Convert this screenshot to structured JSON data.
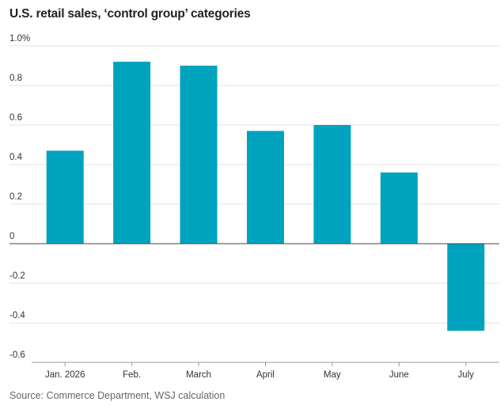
{
  "chart_data": {
    "type": "bar",
    "title": "U.S. retail sales, ‘control group’ categories",
    "source": "Source: Commerce Department, WSJ calculation",
    "categories": [
      "Jan. 2026",
      "Feb.",
      "March",
      "April",
      "May",
      "June",
      "July"
    ],
    "values": [
      0.47,
      0.92,
      0.9,
      0.57,
      0.6,
      0.36,
      -0.44
    ],
    "ylim": [
      -0.6,
      1.0
    ],
    "yticks": [
      1.0,
      0.8,
      0.6,
      0.4,
      0.2,
      0,
      -0.2,
      -0.4,
      -0.6
    ],
    "ytick_labels": [
      "1.0%",
      "0.8",
      "0.6",
      "0.4",
      "0.2",
      "0",
      "-0.2",
      "-0.4",
      "-0.6"
    ],
    "grid": true,
    "bar_color": "#00a3bd",
    "xlabel": "",
    "ylabel": ""
  }
}
